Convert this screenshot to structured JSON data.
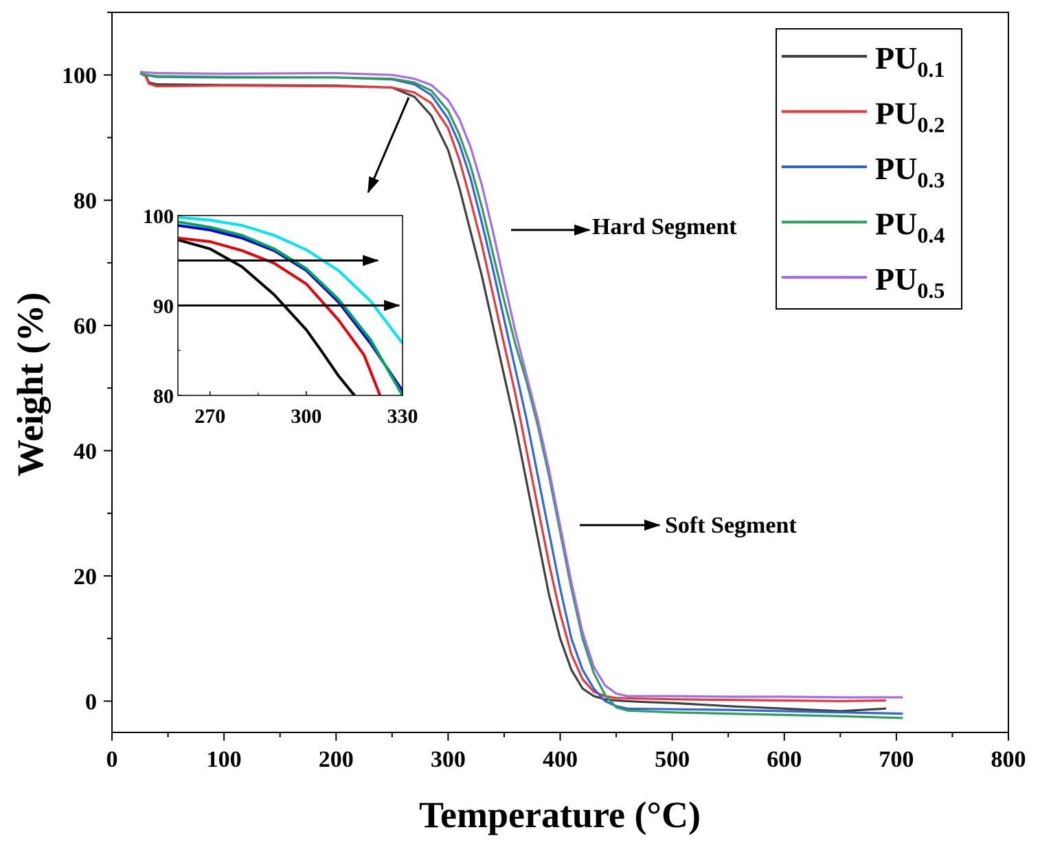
{
  "chart_data": {
    "type": "line",
    "title": "",
    "xlabel": "Temperature (°C)",
    "ylabel": "Weight (%)",
    "xlim": [
      0,
      800
    ],
    "ylim": [
      -5,
      110
    ],
    "x_ticks": [
      0,
      100,
      200,
      300,
      400,
      500,
      600,
      700,
      800
    ],
    "y_ticks": [
      0,
      20,
      40,
      60,
      80,
      100
    ],
    "legend_position": "top-right",
    "series": [
      {
        "name": "PU",
        "sub": "0.1",
        "color": "#404040",
        "x": [
          26,
          30,
          33,
          40,
          100,
          200,
          250,
          270,
          285,
          300,
          310,
          320,
          330,
          340,
          350,
          360,
          370,
          380,
          390,
          400,
          410,
          420,
          430,
          440,
          450,
          470,
          500,
          550,
          600,
          650,
          690
        ],
        "y": [
          100.3,
          100,
          98.8,
          98.5,
          98.4,
          98.3,
          98,
          96.5,
          93.5,
          88,
          82,
          75,
          68,
          60,
          52,
          44,
          35,
          26,
          17,
          10,
          5,
          2,
          0.8,
          0.3,
          0.1,
          -0.1,
          -0.3,
          -0.8,
          -1.2,
          -1.6,
          -1.2
        ]
      },
      {
        "name": "PU",
        "sub": "0.2",
        "color": "#e8383d",
        "x": [
          26,
          30,
          33,
          40,
          100,
          200,
          250,
          270,
          285,
          300,
          310,
          320,
          330,
          340,
          350,
          360,
          370,
          380,
          390,
          400,
          410,
          420,
          430,
          440,
          450,
          470,
          500,
          550,
          600,
          650,
          690
        ],
        "y": [
          100.2,
          99.8,
          98.6,
          98.2,
          98.3,
          98.2,
          98,
          97.2,
          95.5,
          91.5,
          86.5,
          80,
          73,
          65,
          57,
          49,
          40,
          31,
          22,
          14,
          7.5,
          3.5,
          1.5,
          0.8,
          0.5,
          0.4,
          0.3,
          0.2,
          0.1,
          0,
          0.1
        ]
      },
      {
        "name": "PU",
        "sub": "0.3",
        "color": "#2f67d8",
        "x": [
          26,
          30,
          40,
          100,
          200,
          250,
          270,
          285,
          300,
          310,
          320,
          330,
          340,
          350,
          360,
          370,
          380,
          390,
          400,
          410,
          420,
          430,
          440,
          450,
          460,
          500,
          550,
          600,
          650,
          705
        ],
        "y": [
          100.2,
          100,
          99.7,
          99.6,
          99.6,
          99.3,
          98.5,
          96.8,
          93,
          89,
          83.5,
          76.5,
          69,
          61,
          53,
          45,
          36,
          27,
          18,
          10,
          5,
          2,
          0,
          -0.8,
          -1.2,
          -1.3,
          -1.4,
          -1.6,
          -1.8,
          -2
        ]
      },
      {
        "name": "PU",
        "sub": "0.4",
        "color": "#2e9d5e",
        "x": [
          26,
          30,
          40,
          100,
          200,
          250,
          270,
          285,
          300,
          310,
          320,
          330,
          340,
          350,
          360,
          370,
          380,
          390,
          400,
          410,
          420,
          430,
          440,
          450,
          460,
          500,
          550,
          600,
          650,
          705
        ],
        "y": [
          100.2,
          100,
          99.8,
          99.7,
          99.6,
          99.4,
          98.8,
          97.5,
          94.3,
          90.5,
          85.5,
          79,
          71.5,
          64,
          57,
          51,
          44,
          36,
          27,
          18,
          10,
          4.5,
          1,
          -1,
          -1.5,
          -1.8,
          -2,
          -2.2,
          -2.4,
          -2.7
        ]
      },
      {
        "name": "PU",
        "sub": "0.5",
        "color": "#a56de2",
        "x": [
          26,
          30,
          40,
          100,
          200,
          250,
          270,
          285,
          300,
          310,
          320,
          330,
          340,
          350,
          360,
          370,
          380,
          390,
          400,
          410,
          420,
          430,
          440,
          450,
          460,
          500,
          550,
          600,
          650,
          705
        ],
        "y": [
          100.5,
          100.4,
          100.3,
          100.2,
          100.3,
          100,
          99.4,
          98.4,
          96,
          93,
          88.5,
          82.5,
          75,
          67,
          59,
          52,
          45,
          37,
          28,
          19,
          11,
          5.5,
          2.5,
          1.2,
          0.8,
          0.8,
          0.7,
          0.7,
          0.6,
          0.6
        ]
      }
    ],
    "inset": {
      "xlim": [
        260,
        330
      ],
      "ylim": [
        80,
        100
      ],
      "x_ticks": [
        270,
        300,
        330
      ],
      "y_ticks": [
        80,
        90,
        100
      ],
      "reference_lines_y": [
        95,
        90
      ],
      "series": [
        {
          "color": "#000000",
          "x": [
            260,
            270,
            280,
            290,
            300,
            305,
            310,
            315
          ],
          "y": [
            97.3,
            96.3,
            94.3,
            91.2,
            87.3,
            84.8,
            82.2,
            80
          ]
        },
        {
          "color": "#e8000b",
          "x": [
            260,
            270,
            280,
            290,
            300,
            310,
            318,
            323
          ],
          "y": [
            97.5,
            97.1,
            96.1,
            94.7,
            92.4,
            88.4,
            84.5,
            80
          ]
        },
        {
          "color": "#0000e0",
          "x": [
            260,
            270,
            280,
            290,
            300,
            310,
            320,
            330
          ],
          "y": [
            98.9,
            98.4,
            97.5,
            96.1,
            93.9,
            90.4,
            85.8,
            80.5
          ]
        },
        {
          "color": "#00a65a",
          "x": [
            260,
            270,
            280,
            290,
            300,
            310,
            320,
            330
          ],
          "y": [
            99.3,
            98.7,
            97.8,
            96.3,
            94.1,
            90.7,
            86.2,
            80
          ]
        },
        {
          "color": "#00e5ee",
          "x": [
            260,
            270,
            280,
            290,
            300,
            310,
            320,
            330
          ],
          "y": [
            99.8,
            99.5,
            98.9,
            97.8,
            96.2,
            93.9,
            90.5,
            85.8
          ]
        }
      ]
    },
    "annotations": [
      {
        "text": "Hard Segment"
      },
      {
        "text": "Soft Segment"
      }
    ]
  }
}
